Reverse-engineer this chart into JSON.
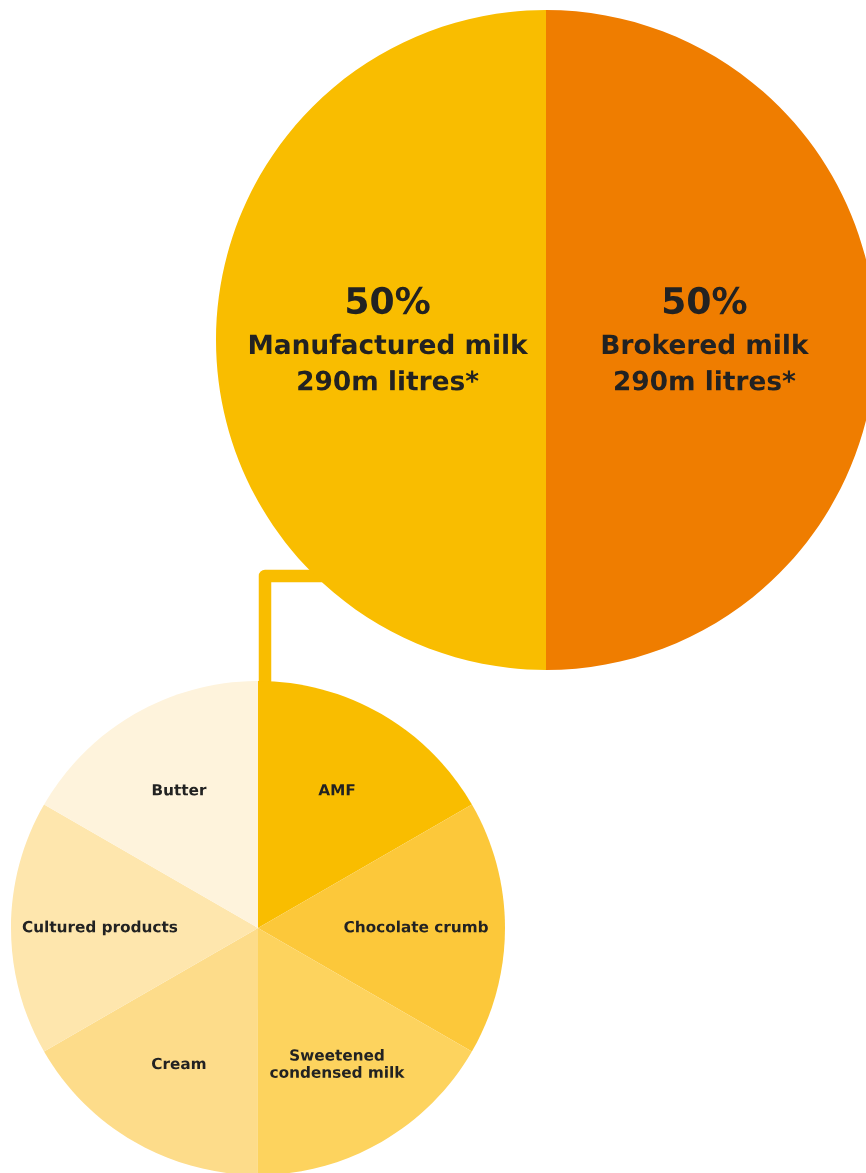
{
  "chart_data": [
    {
      "type": "pie",
      "categories": [
        "Brokered milk",
        "Manufactured milk"
      ],
      "values": [
        50,
        50
      ],
      "colors": [
        "#ef7d00",
        "#f9bd00"
      ],
      "value_labels": [
        "50%",
        "50%"
      ],
      "annotations": [
        "290m litres*",
        "290m litres*"
      ]
    },
    {
      "type": "pie",
      "categories": [
        "AMF",
        "Chocolate crumb",
        "Sweetened\ncondensed milk",
        "Cream",
        "Cultured products",
        "Butter"
      ],
      "values": [
        16.67,
        16.67,
        16.67,
        16.67,
        16.66,
        16.67
      ],
      "colors": [
        "#f9bd00",
        "#fcc83a",
        "#fdd35e",
        "#fddc8a",
        "#fee6ad",
        "#fef3dc"
      ]
    }
  ]
}
